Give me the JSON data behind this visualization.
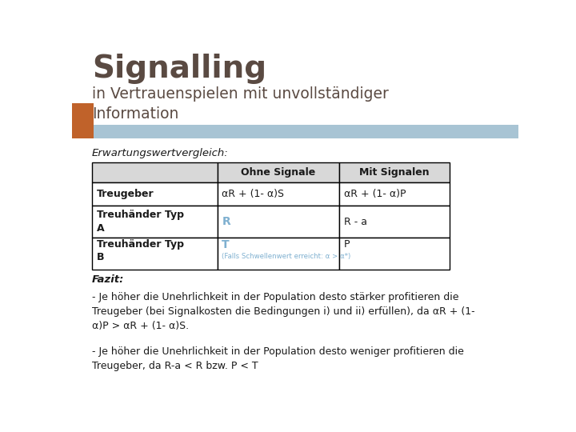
{
  "title_main": "Signalling",
  "title_sub": "in Vertrauenspielen mit unvollständiger\nInformation",
  "title_main_color": "#5a4a42",
  "title_sub_color": "#5a4a42",
  "header_bar_color": "#a8c4d4",
  "orange_bar_color": "#c0622a",
  "section_label": "Erwartungswertvergleich:",
  "table_headers": [
    "",
    "Ohne Signale",
    "Mit Signalen"
  ],
  "table_rows": [
    [
      "Treugeber",
      "αR + (1- α)S",
      "αR + (1- α)P"
    ],
    [
      "Treuhänder Typ\nA",
      "R",
      "R - a"
    ],
    [
      "Treuhänder Typ\nB",
      "T\n(Falls Schwellenwert erreicht: α > α*)",
      "P"
    ]
  ],
  "col2_colored_rows": [
    "R",
    "T"
  ],
  "col2_color": "#7fb0d0",
  "fazit_label": "Fazit:",
  "fazit_text1": "- Je höher die Unehrlichkeit in der Population desto stärker profitieren die\nTreugeber (bei Signalkosten die Bedingungen i) und ii) erfüllen), da αR + (1-\nα)P > αR + (1- α)S.",
  "fazit_text2": "- Je höher die Unehrlichkeit in der Population desto weniger profitieren die\nTreugeber, da R-a < R bzw. P < T",
  "bg_color": "#ffffff",
  "table_border_color": "#000000",
  "text_color": "#1a1a1a",
  "subtext_color": "#7fb0d0"
}
